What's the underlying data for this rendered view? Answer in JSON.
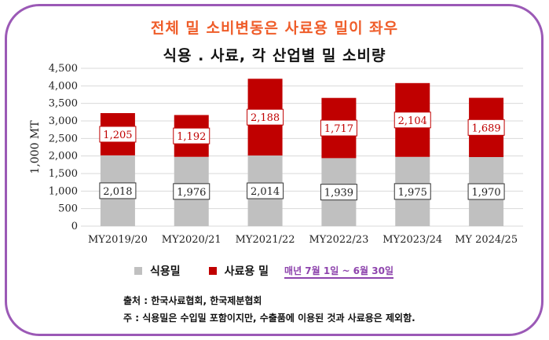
{
  "headline": "전체 밀 소비변동은 사료용 밀이 좌우",
  "chart_data": {
    "type": "bar",
    "stacked": true,
    "title": "식용 . 사료, 각 산업별 밀 소비량",
    "ylabel": "1,000 MT",
    "ylim": [
      0,
      4500
    ],
    "yticks": [
      "0",
      "500",
      "1,000",
      "1,500",
      "2,000",
      "2,500",
      "3,000",
      "3,500",
      "4,000",
      "4,500"
    ],
    "ytick_values": [
      0,
      500,
      1000,
      1500,
      2000,
      2500,
      3000,
      3500,
      4000,
      4500
    ],
    "categories": [
      "MY2019/20",
      "MY2020/21",
      "MY2021/22",
      "MY2022/23",
      "MY2023/24",
      "MY 2024/25"
    ],
    "series": [
      {
        "name": "식용밀",
        "color": "#c0c0c0",
        "values": [
          2018,
          1976,
          2014,
          1939,
          1975,
          1970
        ],
        "labels": [
          "2,018",
          "1,976",
          "2,014",
          "1,939",
          "1,975",
          "1,970"
        ]
      },
      {
        "name": "사료용 밀",
        "color": "#c00000",
        "values": [
          1205,
          1192,
          2188,
          1717,
          2104,
          1689
        ],
        "labels": [
          "1,205",
          "1,192",
          "2,188",
          "1,717",
          "2,104",
          "1,689"
        ]
      }
    ],
    "period_note": "매년 7월 1일 ~ 6월 30일",
    "grid": true
  },
  "source": "출처 : 한국사료협회, 한국제분협회",
  "note": "주 : 식용밀은 수입밀 포함이지만, 수출품에 이용된 것과 사료용은 제외함."
}
